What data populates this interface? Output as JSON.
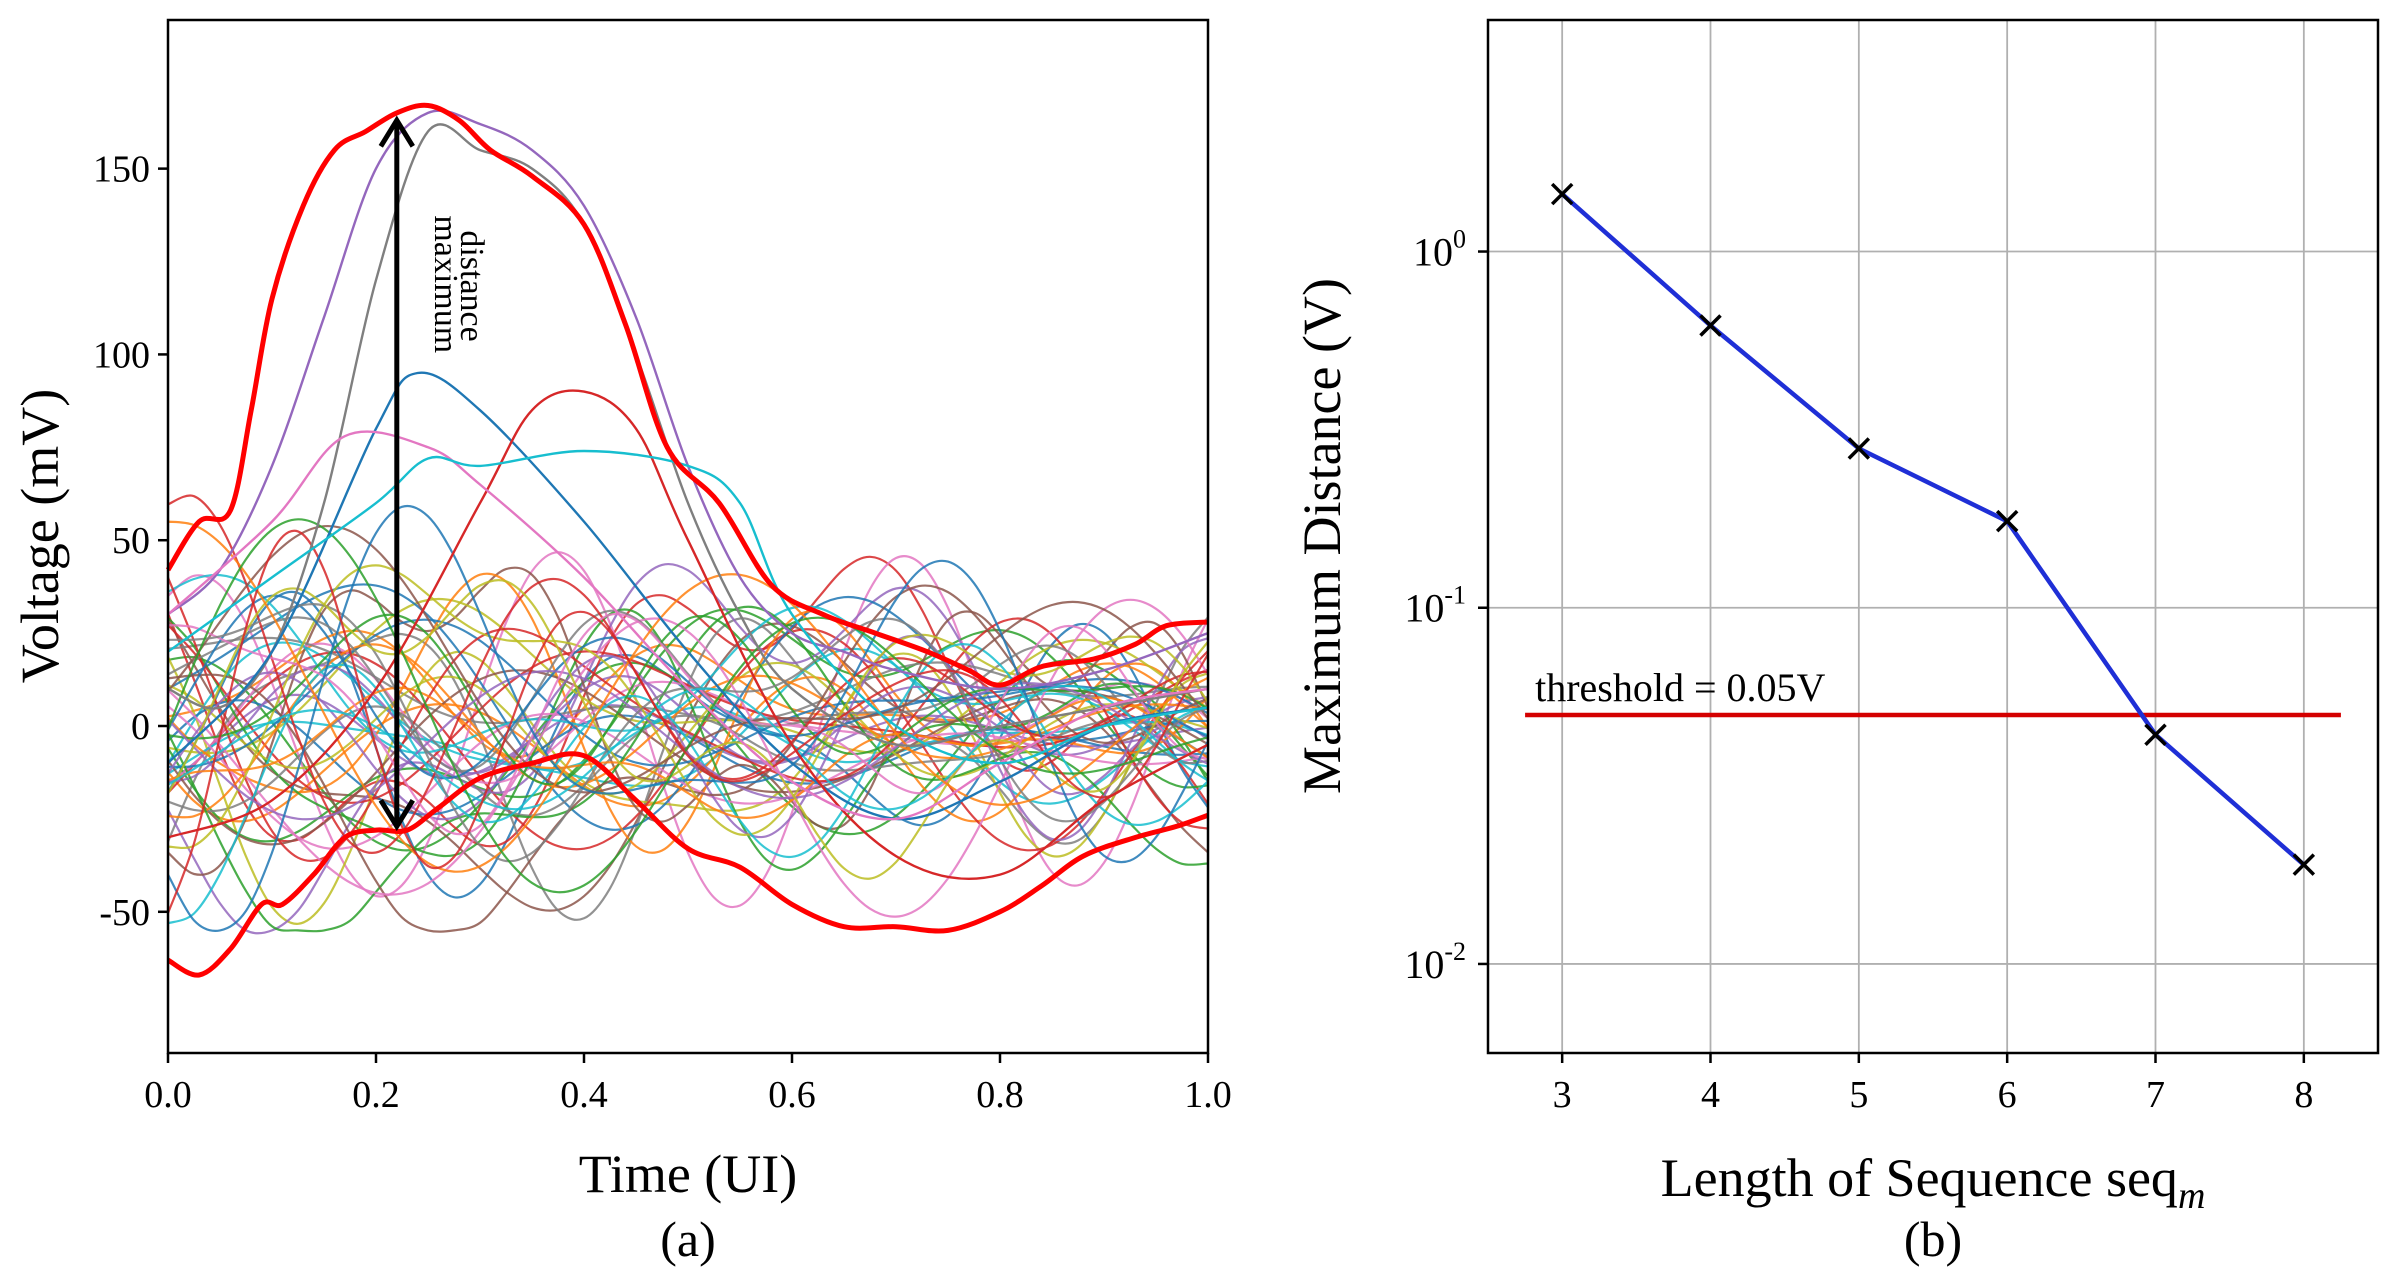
{
  "colors": {
    "envelope": "#ff0000",
    "arrow": "#000000",
    "line_b": "#1f2fd6",
    "threshold": "#d40000",
    "marker": "#000000",
    "grid": "#b0b0b0",
    "palette": [
      "#1f77b4",
      "#ff7f0e",
      "#2ca02c",
      "#d62728",
      "#9467bd",
      "#8c564b",
      "#e377c2",
      "#7f7f7f",
      "#bcbd22",
      "#17becf"
    ]
  },
  "chart_data": [
    {
      "id": "a",
      "type": "line",
      "caption": "(a)",
      "xlabel": "Time (UI)",
      "ylabel": "Voltage (mV)",
      "xlim": [
        0.0,
        1.0
      ],
      "ylim": [
        -88,
        190
      ],
      "xticks": [
        0.0,
        0.2,
        0.4,
        0.6,
        0.8,
        1.0
      ],
      "xtick_labels": [
        "0.0",
        "0.2",
        "0.4",
        "0.6",
        "0.8",
        "1.0"
      ],
      "yticks": [
        -50,
        0,
        50,
        100,
        150
      ],
      "ytick_labels": [
        "-50",
        "0",
        "50",
        "100",
        "150"
      ],
      "grid": false,
      "annotation": {
        "text_line1": "maximum",
        "text_line2": "distance",
        "x": 0.22,
        "y_from": 163,
        "y_to": -27
      },
      "upper_envelope": {
        "x": [
          0,
          0.03,
          0.06,
          0.08,
          0.1,
          0.13,
          0.16,
          0.19,
          0.22,
          0.25,
          0.28,
          0.31,
          0.35,
          0.4,
          0.44,
          0.48,
          0.53,
          0.58,
          0.63,
          0.68,
          0.73,
          0.77,
          0.8,
          0.84,
          0.89,
          0.93,
          0.96,
          1.0
        ],
        "y": [
          42,
          55,
          58,
          85,
          115,
          140,
          155,
          160,
          165,
          167,
          163,
          155,
          148,
          135,
          108,
          75,
          60,
          38,
          30,
          25,
          20,
          15,
          11,
          16,
          18,
          22,
          27,
          28
        ]
      },
      "lower_envelope": {
        "x": [
          0,
          0.03,
          0.06,
          0.09,
          0.11,
          0.14,
          0.17,
          0.2,
          0.23,
          0.26,
          0.3,
          0.35,
          0.4,
          0.45,
          0.5,
          0.55,
          0.6,
          0.65,
          0.7,
          0.75,
          0.8,
          0.84,
          0.88,
          0.93,
          0.97,
          1.0
        ],
        "y": [
          -63,
          -67,
          -60,
          -48,
          -48,
          -40,
          -30,
          -28,
          -28,
          -22,
          -14,
          -10,
          -8,
          -20,
          -33,
          -38,
          -48,
          -54,
          -54,
          -55,
          -50,
          -43,
          -35,
          -30,
          -27,
          -24
        ],
        "note": "lower bound drawn as the red outline at the bottom of the signal cloud"
      },
      "series_count": 60,
      "series_note": "overlapping colored waveforms (~60 traces) spanning -65 to 165 mV; highlight traces listed below, remaining traces drawn from a deterministic generator",
      "series": [
        {
          "name": "trace-peak-1",
          "x": [
            0,
            0.05,
            0.1,
            0.15,
            0.2,
            0.25,
            0.3,
            0.35,
            0.4,
            0.45,
            0.5,
            0.55,
            0.6,
            0.65,
            0.7,
            0.8,
            0.9,
            1.0
          ],
          "y": [
            30,
            42,
            70,
            110,
            150,
            165,
            162,
            155,
            140,
            110,
            70,
            40,
            25,
            20,
            15,
            10,
            15,
            25
          ]
        },
        {
          "name": "trace-peak-2",
          "x": [
            0,
            0.05,
            0.1,
            0.15,
            0.2,
            0.25,
            0.3,
            0.35,
            0.4,
            0.45,
            0.5,
            0.55,
            0.6,
            0.7,
            0.8,
            0.9,
            1.0
          ],
          "y": [
            10,
            5,
            20,
            60,
            120,
            160,
            155,
            150,
            135,
            100,
            60,
            30,
            10,
            -5,
            0,
            5,
            10
          ]
        },
        {
          "name": "trace-mid-1",
          "x": [
            0,
            0.1,
            0.2,
            0.24,
            0.3,
            0.4,
            0.5,
            0.6,
            0.7,
            0.8,
            0.9,
            1.0
          ],
          "y": [
            -10,
            20,
            80,
            95,
            85,
            55,
            20,
            -10,
            -25,
            -15,
            0,
            5
          ]
        },
        {
          "name": "trace-mid-2",
          "x": [
            0,
            0.1,
            0.2,
            0.3,
            0.35,
            0.4,
            0.45,
            0.5,
            0.6,
            0.7,
            0.8,
            0.9,
            1.0
          ],
          "y": [
            -30,
            -20,
            10,
            60,
            85,
            90,
            80,
            50,
            -5,
            -35,
            -40,
            -20,
            -5
          ]
        },
        {
          "name": "trace-mid-3",
          "x": [
            0,
            0.1,
            0.17,
            0.25,
            0.3,
            0.4,
            0.5,
            0.6,
            0.7,
            0.8,
            0.9,
            1.0
          ],
          "y": [
            30,
            55,
            78,
            75,
            65,
            40,
            10,
            -15,
            -25,
            -10,
            5,
            10
          ]
        },
        {
          "name": "trace-mid-4",
          "x": [
            0,
            0.1,
            0.2,
            0.25,
            0.3,
            0.4,
            0.5,
            0.55,
            0.6,
            0.7,
            0.8,
            0.9,
            1.0
          ],
          "y": [
            20,
            40,
            60,
            72,
            70,
            74,
            70,
            60,
            30,
            0,
            -10,
            0,
            5
          ]
        }
      ]
    },
    {
      "id": "b",
      "type": "line",
      "caption": "(b)",
      "xlabel": "Length of Sequence seq",
      "xlabel_subscript": "m",
      "ylabel": "Maximum Distance (V)",
      "yscale": "log",
      "xlim": [
        2.5,
        8.5
      ],
      "ylim_log10": [
        -2.25,
        0.65
      ],
      "xticks": [
        3,
        4,
        5,
        6,
        7,
        8
      ],
      "xtick_labels": [
        "3",
        "4",
        "5",
        "6",
        "7",
        "8"
      ],
      "yticks_log10": [
        -2,
        -1,
        0
      ],
      "ytick_base": "10",
      "ytick_exponents": [
        "-2",
        "-1",
        "0"
      ],
      "grid": true,
      "series": [
        {
          "name": "maximum-distance",
          "marker": "x",
          "x": [
            3,
            4,
            5,
            6,
            7,
            8
          ],
          "y": [
            1.45,
            0.62,
            0.28,
            0.175,
            0.044,
            0.019
          ]
        }
      ],
      "threshold": {
        "label": "threshold = 0.05V",
        "value": 0.05,
        "x_from": 2.75,
        "x_to": 8.25
      }
    }
  ]
}
